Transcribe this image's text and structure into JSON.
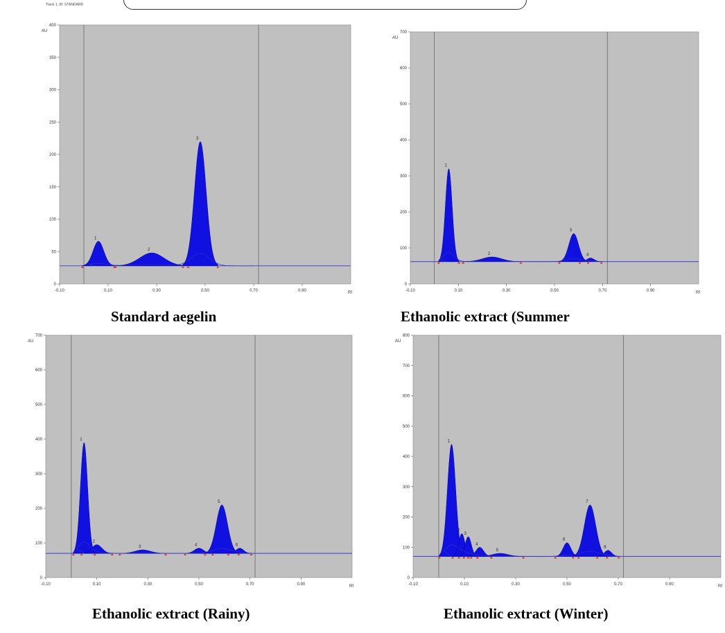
{
  "track_label": "Track 1, ID: STANDARD",
  "charts": [
    {
      "caption": "Standard aegelin",
      "x_ticks": [
        "-0.10",
        "0.10",
        "0.30",
        "0.50",
        "0.70",
        "0.90"
      ],
      "x_unit": "Rf",
      "y_ticks": [
        "0",
        "50",
        "100",
        "150",
        "200",
        "250",
        "300",
        "350",
        "400"
      ],
      "y_unit": "AU",
      "ylim": [
        0,
        400
      ],
      "xlim": [
        -0.1,
        1.1
      ],
      "front_lines": [
        0.0,
        0.72
      ],
      "baseline": 28,
      "peaks": [
        {
          "label": "1",
          "rf": 0.06,
          "height": 66,
          "width": 0.022
        },
        {
          "label": "2",
          "rf": 0.28,
          "height": 48,
          "width": 0.05
        },
        {
          "label": "3",
          "rf": 0.48,
          "height": 220,
          "width": 0.024
        }
      ]
    },
    {
      "caption": "Ethanolic extract (Summer",
      "x_ticks": [
        "-0.10",
        "0.10",
        "0.30",
        "0.50",
        "0.70",
        "0.90"
      ],
      "x_unit": "Rf",
      "y_ticks": [
        "0",
        "100",
        "200",
        "300",
        "400",
        "500",
        "600",
        "700"
      ],
      "y_unit": "AU",
      "ylim": [
        0,
        700
      ],
      "xlim": [
        -0.1,
        1.1
      ],
      "front_lines": [
        0.0,
        0.72
      ],
      "baseline": 62,
      "peaks": [
        {
          "label": "1",
          "rf": 0.06,
          "height": 320,
          "width": 0.014
        },
        {
          "label": "2",
          "rf": 0.24,
          "height": 75,
          "width": 0.04
        },
        {
          "label": "3",
          "rf": 0.58,
          "height": 140,
          "width": 0.02
        },
        {
          "label": "4",
          "rf": 0.65,
          "height": 72,
          "width": 0.015
        }
      ]
    },
    {
      "caption": "Ethanolic extract (Rainy)",
      "x_ticks": [
        "-0.10",
        "0.10",
        "0.30",
        "0.50",
        "0.70",
        "0.90"
      ],
      "x_unit": "Rf",
      "y_ticks": [
        "0",
        "100",
        "200",
        "300",
        "400",
        "500",
        "600",
        "700"
      ],
      "y_unit": "AU",
      "ylim": [
        0,
        700
      ],
      "xlim": [
        -0.1,
        1.1
      ],
      "front_lines": [
        0.0,
        0.72
      ],
      "baseline": 70,
      "peaks": [
        {
          "label": "1",
          "rf": 0.05,
          "height": 390,
          "width": 0.014
        },
        {
          "label": "2",
          "rf": 0.1,
          "height": 95,
          "width": 0.02
        },
        {
          "label": "3",
          "rf": 0.28,
          "height": 80,
          "width": 0.03
        },
        {
          "label": "4",
          "rf": 0.5,
          "height": 85,
          "width": 0.018
        },
        {
          "label": "5",
          "rf": 0.59,
          "height": 210,
          "width": 0.022
        },
        {
          "label": "6",
          "rf": 0.66,
          "height": 85,
          "width": 0.015
        }
      ]
    },
    {
      "caption": "Ethanolic extract (Winter)",
      "x_ticks": [
        "-0.10",
        "0.10",
        "0.30",
        "0.50",
        "0.70",
        "0.90"
      ],
      "x_unit": "Rf",
      "y_ticks": [
        "0",
        "100",
        "200",
        "300",
        "400",
        "500",
        "600",
        "700",
        "800"
      ],
      "y_unit": "AU",
      "ylim": [
        0,
        800
      ],
      "xlim": [
        -0.1,
        1.1
      ],
      "front_lines": [
        0.0,
        0.72
      ],
      "baseline": 70,
      "peaks": [
        {
          "label": "1",
          "rf": 0.05,
          "height": 440,
          "width": 0.016
        },
        {
          "label": "2",
          "rf": 0.09,
          "height": 145,
          "width": 0.012
        },
        {
          "label": "3",
          "rf": 0.115,
          "height": 135,
          "width": 0.012
        },
        {
          "label": "4",
          "rf": 0.16,
          "height": 100,
          "width": 0.015
        },
        {
          "label": "5",
          "rf": 0.24,
          "height": 80,
          "width": 0.03
        },
        {
          "label": "6",
          "rf": 0.5,
          "height": 115,
          "width": 0.015
        },
        {
          "label": "7",
          "rf": 0.59,
          "height": 240,
          "width": 0.022
        },
        {
          "label": "8",
          "rf": 0.66,
          "height": 90,
          "width": 0.014
        }
      ]
    }
  ]
}
